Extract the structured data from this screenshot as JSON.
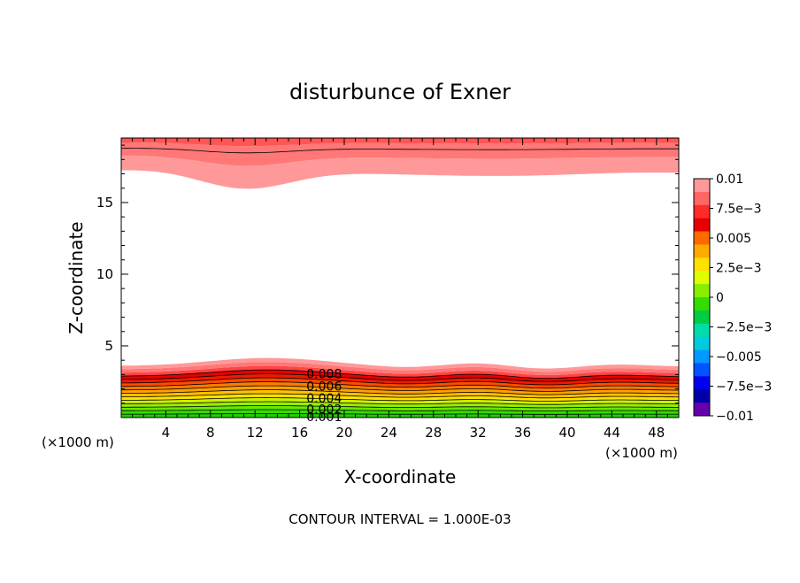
{
  "chart_data": {
    "type": "heatmap",
    "title": "disturbunce of Exner",
    "xlabel": "X-coordinate",
    "ylabel": "Z-coordinate",
    "x_unit_left": "(×1000 m)",
    "x_unit_right": "(×1000 m)",
    "footer": "CONTOUR INTERVAL = 1.000E-03",
    "xlim": [
      0,
      50
    ],
    "ylim": [
      0,
      19.5
    ],
    "x_ticks": [
      "4",
      "8",
      "12",
      "16",
      "20",
      "24",
      "28",
      "32",
      "36",
      "40",
      "44",
      "48"
    ],
    "y_ticks": [
      "5",
      "10",
      "15"
    ],
    "colorbar": {
      "labels": [
        "0.01",
        "7.5e−3",
        "0.005",
        "2.5e−3",
        "0",
        "−2.5e−3",
        "−0.005",
        "−7.5e−3",
        "−0.01"
      ],
      "range": [
        -0.01,
        0.01
      ],
      "colors": [
        "#ff9999",
        "#ff6666",
        "#ff2a2a",
        "#e60000",
        "#ff6a00",
        "#ffaa00",
        "#ffe000",
        "#ddff00",
        "#88ee00",
        "#33dd00",
        "#00cc44",
        "#00ddaa",
        "#00ccdd",
        "#0099ff",
        "#0055ff",
        "#0000ee",
        "#0000aa",
        "#6600aa"
      ]
    },
    "contour_labels": [
      "0.008",
      "0.006",
      "0.004",
      "0.002",
      "0.001"
    ],
    "bottom_band_colors": [
      "#22cc00",
      "#33dd00",
      "#66e600",
      "#99ee00",
      "#ccf000",
      "#ffe000",
      "#ffc000",
      "#ffa000",
      "#ff7a00",
      "#ff4a00",
      "#ee1a00",
      "#e60000",
      "#ff4444",
      "#ff7777",
      "#ff9999"
    ],
    "top_band_colors": [
      "#ff9999",
      "#ff7777",
      "#ff5555"
    ]
  }
}
